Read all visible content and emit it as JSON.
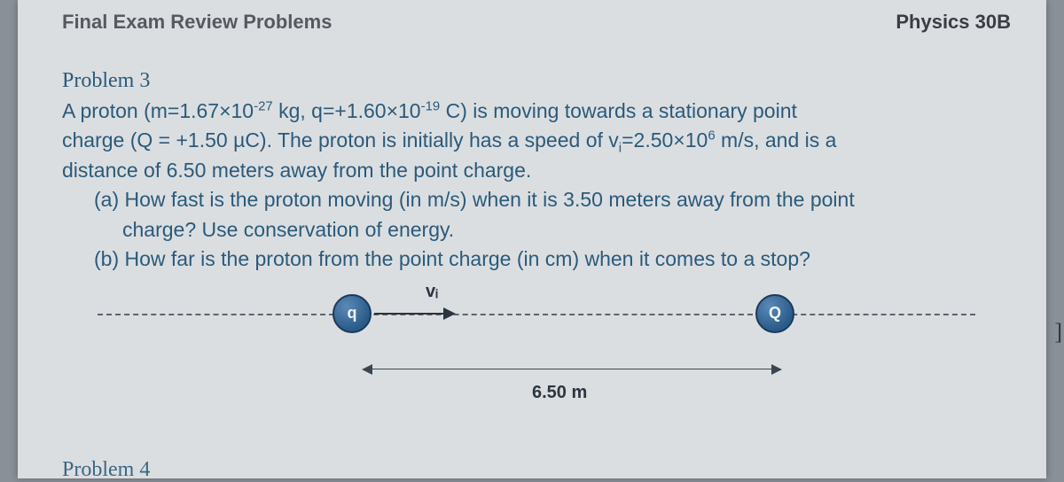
{
  "header": {
    "left": "Final Exam Review Problems",
    "right": "Physics 30B"
  },
  "problem": {
    "title": "Problem 3",
    "line1_pre": "A proton (m=1.67×10",
    "line1_exp1": "-27",
    "line1_mid1": " kg, q=+1.60×10",
    "line1_exp2": "-19",
    "line1_post1": " C) is moving towards a stationary point",
    "line2_pre": "charge (Q = +1.50 µC). The proton is initially has a speed of v",
    "line2_sub": "i",
    "line2_mid": "=2.50×10",
    "line2_exp": "6",
    "line2_post": " m/s, and is a",
    "line3": "distance of 6.50 meters away from the point charge.",
    "part_a_1": "(a) How fast is the proton moving (in m/s) when it is 3.50 meters away from the point",
    "part_a_2": "charge? Use conservation of energy.",
    "part_b": "(b) How far is the proton from the point charge (in cm) when it comes to a stop?"
  },
  "diagram": {
    "vi_label": "vᵢ",
    "q_label": "q",
    "Q_label": "Q",
    "distance_label": "6.50 m"
  },
  "next_problem": "Problem 4",
  "colors": {
    "page_bg": "#dbdee1",
    "outer_bg": "#8a9098",
    "text_blue": "#2a5a7a",
    "header_grey": "#555a60",
    "circle_fill": "#2a5a88",
    "line_dark": "#2b3540"
  }
}
